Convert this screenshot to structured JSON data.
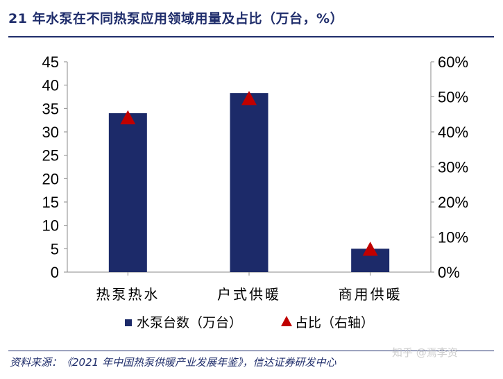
{
  "title": "21 年水泵在不同热泵应用领域用量及占比（万台，%）",
  "source": "资料来源：《2021 年中国热泵供暖产业发展年鉴》，信达证券研发中心",
  "watermark": "知乎 @焉李资",
  "colors": {
    "bar": "#1c2a69",
    "marker": "#c00000",
    "title": "#1f2d6b",
    "axis": "#888888",
    "text": "#000000"
  },
  "chart_data": {
    "type": "bar",
    "categories": [
      "热泵热水",
      "户式供暖",
      "商用供暖"
    ],
    "series": [
      {
        "name": "水泵台数（万台）",
        "type": "bar",
        "axis": "left",
        "values": [
          34,
          38.3,
          5
        ]
      },
      {
        "name": "占比（右轴）",
        "type": "scatter",
        "marker": "triangle",
        "axis": "right",
        "values": [
          0.44,
          0.495,
          0.065
        ]
      }
    ],
    "ylim": [
      0,
      45
    ],
    "yticks": [
      "0",
      "5",
      "10",
      "15",
      "20",
      "25",
      "30",
      "35",
      "40",
      "45"
    ],
    "y2lim": [
      0,
      0.6
    ],
    "y2ticks": [
      "0%",
      "10%",
      "20%",
      "30%",
      "40%",
      "50%",
      "60%"
    ],
    "grid": false,
    "legend_position": "bottom"
  }
}
